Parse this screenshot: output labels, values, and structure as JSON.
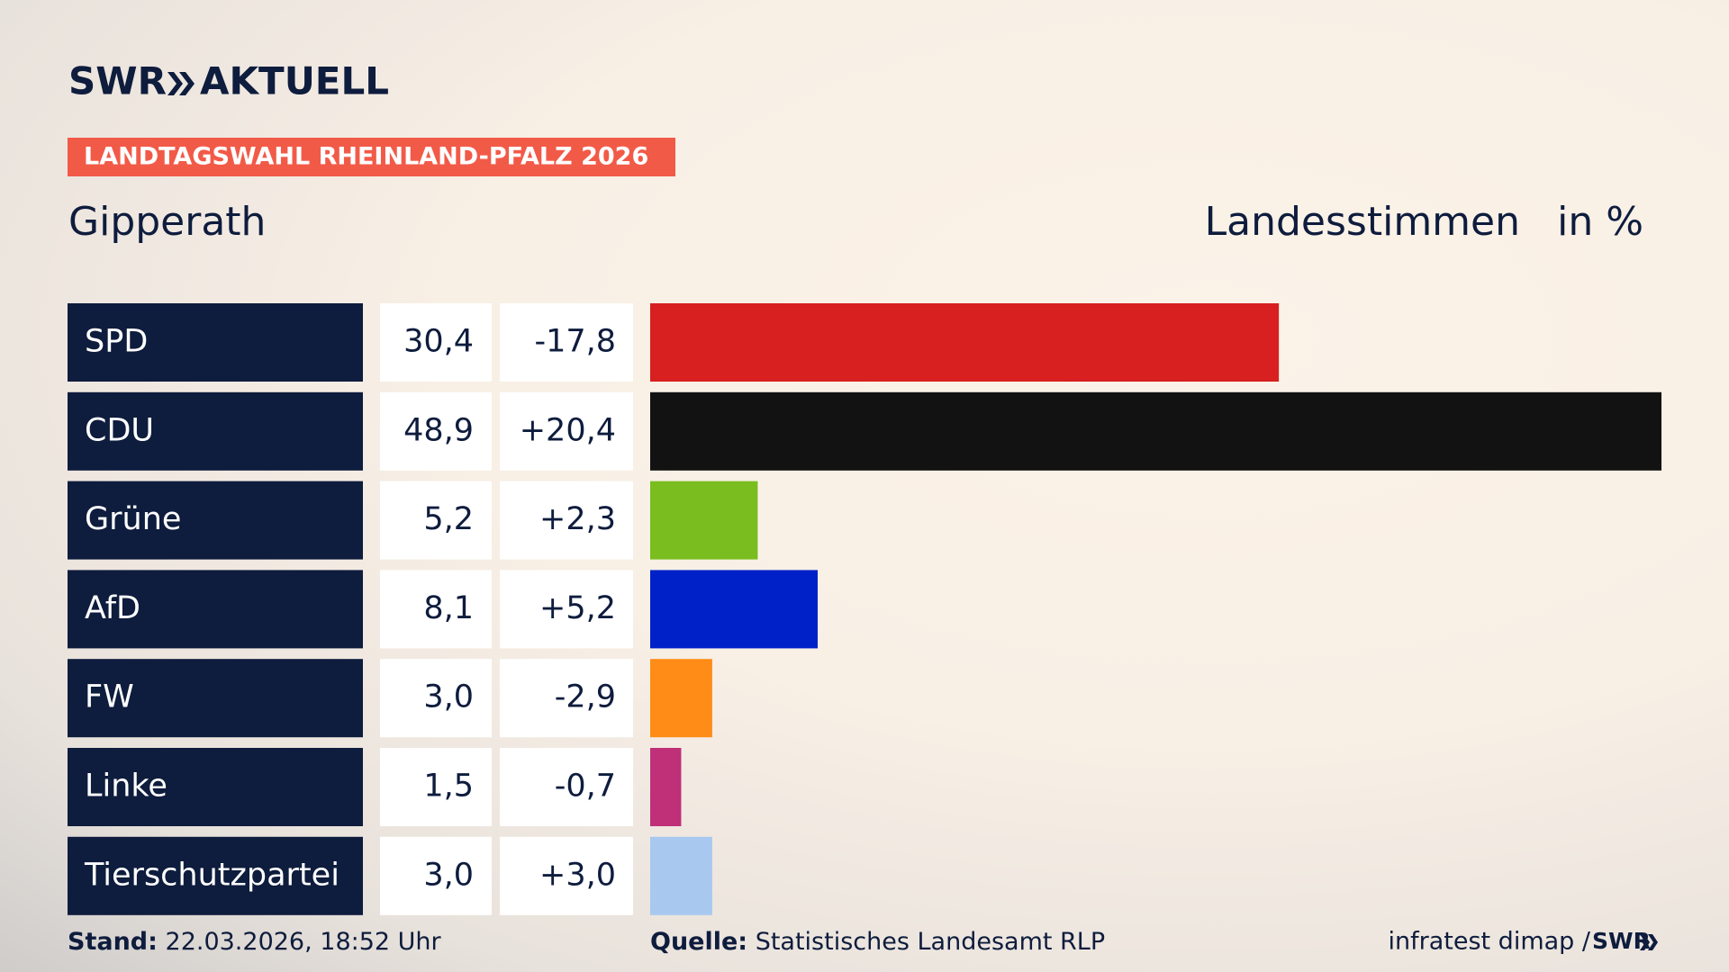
{
  "brand": "SWR",
  "brand_suffix": "AKTUELL",
  "kicker": "LANDTAGSWAHL RHEINLAND-PFALZ 2026",
  "chart_data": {
    "type": "bar",
    "orientation": "horizontal",
    "title": "Gipperath",
    "value_title": "Landesstimmen",
    "unit": "in %",
    "categories": [
      "SPD",
      "CDU",
      "Grüne",
      "AfD",
      "FW",
      "Linke",
      "Tierschutzpartei"
    ],
    "values": [
      30.4,
      48.9,
      5.2,
      8.1,
      3.0,
      1.5,
      3.0
    ],
    "value_labels": [
      "30,4",
      "48,9",
      "5,2",
      "8,1",
      "3,0",
      "1,5",
      "3,0"
    ],
    "changes": [
      -17.8,
      20.4,
      2.3,
      5.2,
      -2.9,
      -0.7,
      3.0
    ],
    "change_labels": [
      "-17,8",
      "+20,4",
      "+2,3",
      "+5,2",
      "-2,9",
      "-0,7",
      "+3,0"
    ],
    "colors": [
      "#d7201f",
      "#121212",
      "#7abd1f",
      "#0021c8",
      "#ff8c17",
      "#bf3079",
      "#a9c8ef"
    ]
  },
  "footer": {
    "date_label": "Stand:",
    "date": "22.03.2026, 18:52 Uhr",
    "source_label": "Quelle:",
    "source": "Statistisches Landesamt RLP",
    "credit": "infratest dimap /",
    "credit_brand": "SWR"
  }
}
